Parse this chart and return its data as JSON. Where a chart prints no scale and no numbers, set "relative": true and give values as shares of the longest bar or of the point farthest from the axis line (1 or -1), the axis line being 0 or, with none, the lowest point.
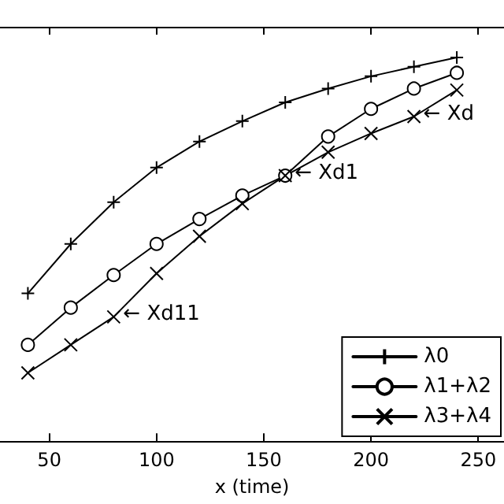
{
  "chart_data": {
    "type": "line",
    "relative": true,
    "xlabel": "x (time)",
    "xlim": [
      27,
      262
    ],
    "xticks": [
      50,
      100,
      150,
      200,
      250
    ],
    "grid": false,
    "legend": "bottom right",
    "line_style": "solid",
    "series": [
      {
        "name": "λ0",
        "color": "#000000",
        "marker": "cross",
        "x": [
          40,
          60,
          80,
          100,
          120,
          140,
          160,
          180,
          200,
          220,
          240
        ],
        "values": [
          0.385,
          0.514,
          0.623,
          0.713,
          0.781,
          0.834,
          0.883,
          0.919,
          0.951,
          0.976,
          1
        ]
      },
      {
        "name": "λ1+λ2",
        "color": "#000000",
        "marker": "circle",
        "x": [
          40,
          60,
          80,
          100,
          120,
          140,
          160,
          180,
          200,
          220,
          240
        ],
        "values": [
          0.251,
          0.348,
          0.433,
          0.514,
          0.579,
          0.64,
          0.692,
          0.794,
          0.866,
          0.919,
          0.96
        ]
      },
      {
        "name": "λ3+λ4",
        "color": "#000000",
        "marker": "x",
        "x": [
          40,
          60,
          80,
          100,
          120,
          140,
          160,
          180,
          200,
          220,
          240
        ],
        "values": [
          0.178,
          0.251,
          0.324,
          0.437,
          0.534,
          0.619,
          0.692,
          0.753,
          0.802,
          0.846,
          0.915
        ]
      }
    ],
    "annotations": [
      {
        "text": "← Xd11",
        "x": 80,
        "y": 0.324
      },
      {
        "text": "← Xd1",
        "x": 160,
        "y": 0.692
      },
      {
        "text": "← Xd",
        "x": 220,
        "y": 0.846
      }
    ]
  }
}
